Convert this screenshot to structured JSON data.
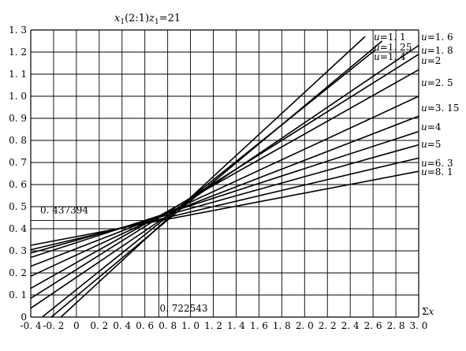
{
  "chart_data": {
    "type": "line",
    "title": "x1(2:1)z1=21",
    "title_parts": {
      "a": "x",
      "a_sub": "1",
      "mid": "(2:1)",
      "b": "z",
      "b_sub": "1",
      "tail": "=21"
    },
    "xlabel": "Σx",
    "ylabel": "",
    "xlim": [
      -0.4,
      3.0
    ],
    "ylim": [
      0,
      1.3
    ],
    "grid": true,
    "x_ticks": [
      "-0.4",
      "-0.2",
      "0",
      "0.2",
      "0.4",
      "0.6",
      "0.8",
      "1.0",
      "1.2",
      "1.4",
      "1.6",
      "1.8",
      "2.0",
      "2.2",
      "2.4",
      "2.6",
      "2.8",
      "3.0"
    ],
    "y_ticks": [
      "0",
      "0.1",
      "0.2",
      "0.3",
      "0.4",
      "0.5",
      "0.6",
      "0.7",
      "0.8",
      "0.9",
      "1.0",
      "1.1",
      "1.2",
      "1.3"
    ],
    "annotations": [
      {
        "text": "0.437394",
        "x": 0.722543,
        "y": 0.437394
      },
      {
        "text": "0.722543",
        "x": 0.722543,
        "y": 0.437394
      }
    ],
    "series": [
      {
        "name": "u=1.1",
        "label": "u=1. 1",
        "x": [
          -0.136,
          2.53
        ],
        "y": [
          0.0,
          1.27
        ]
      },
      {
        "name": "u=1.25",
        "label": "u=1. 25",
        "x": [
          -0.22,
          2.68
        ],
        "y": [
          0.0,
          1.25
        ]
      },
      {
        "name": "u=1.4",
        "label": "u=1. 4",
        "x": [
          -0.3,
          2.62
        ],
        "y": [
          0.0,
          1.21
        ]
      },
      {
        "name": "u=1.6",
        "label": "u=1. 6",
        "x": [
          -0.4,
          3.0
        ],
        "y": [
          0.04,
          1.23
        ]
      },
      {
        "name": "u=1.8",
        "label": "u=1. 8",
        "x": [
          -0.4,
          3.0
        ],
        "y": [
          0.085,
          1.19
        ]
      },
      {
        "name": "u=2",
        "label": "u=2",
        "x": [
          -0.4,
          3.0
        ],
        "y": [
          0.13,
          1.12
        ]
      },
      {
        "name": "u=2.5",
        "label": "u=2. 5",
        "x": [
          -0.4,
          3.0
        ],
        "y": [
          0.185,
          1.0
        ]
      },
      {
        "name": "u=3.15",
        "label": "u=3. 15",
        "x": [
          -0.4,
          3.0
        ],
        "y": [
          0.23,
          0.91
        ]
      },
      {
        "name": "u=4",
        "label": "u=4",
        "x": [
          -0.4,
          3.0
        ],
        "y": [
          0.27,
          0.84
        ]
      },
      {
        "name": "u=5",
        "label": "u=5",
        "x": [
          -0.4,
          3.0
        ],
        "y": [
          0.29,
          0.78
        ]
      },
      {
        "name": "u=6.3",
        "label": "u=6. 3",
        "x": [
          -0.4,
          3.0
        ],
        "y": [
          0.305,
          0.72
        ]
      },
      {
        "name": "u=8.1",
        "label": "u=8. 1",
        "x": [
          -0.4,
          3.0
        ],
        "y": [
          0.325,
          0.66
        ]
      }
    ]
  }
}
